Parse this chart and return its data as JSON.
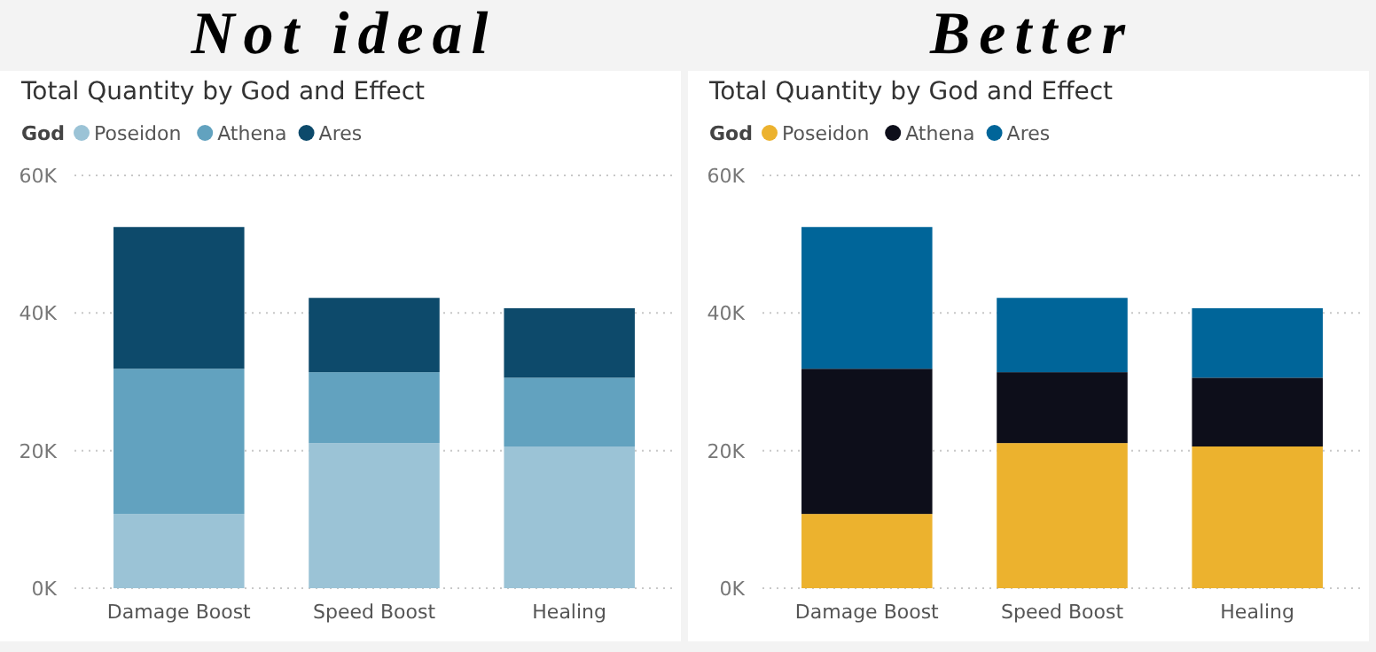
{
  "chart_data": [
    {
      "type": "bar",
      "title": "Not ideal",
      "subtitle": "Total Quantity by God and Effect",
      "legend_title": "God",
      "legend": "top left",
      "grid": "y",
      "stacked": true,
      "categories": [
        "Damage Boost",
        "Speed Boost",
        "Healing"
      ],
      "ylim": [
        0,
        60000
      ],
      "yticks": [
        {
          "value": 0,
          "label": "0K"
        },
        {
          "value": 20000,
          "label": "20K"
        },
        {
          "value": 40000,
          "label": "40K"
        },
        {
          "value": 60000,
          "label": "60K"
        }
      ],
      "series": [
        {
          "name": "Poseidon",
          "color": "#9bc3d6",
          "values": [
            10800,
            21100,
            20600
          ]
        },
        {
          "name": "Athena",
          "color": "#62a2bf",
          "values": [
            21100,
            10300,
            10000
          ]
        },
        {
          "name": "Ares",
          "color": "#0d4a6b",
          "values": [
            20600,
            10800,
            10100
          ]
        }
      ]
    },
    {
      "type": "bar",
      "title": "Better",
      "subtitle": "Total Quantity by God and Effect",
      "legend_title": "God",
      "legend": "top left",
      "grid": "y",
      "stacked": true,
      "categories": [
        "Damage Boost",
        "Speed Boost",
        "Healing"
      ],
      "ylim": [
        0,
        60000
      ],
      "yticks": [
        {
          "value": 0,
          "label": "0K"
        },
        {
          "value": 20000,
          "label": "20K"
        },
        {
          "value": 40000,
          "label": "40K"
        },
        {
          "value": 60000,
          "label": "60K"
        }
      ],
      "series": [
        {
          "name": "Poseidon",
          "color": "#ecb22e",
          "values": [
            10800,
            21100,
            20600
          ]
        },
        {
          "name": "Athena",
          "color": "#0d0e1a",
          "values": [
            21100,
            10300,
            10000
          ]
        },
        {
          "name": "Ares",
          "color": "#006599",
          "values": [
            20600,
            10800,
            10100
          ]
        }
      ]
    }
  ]
}
